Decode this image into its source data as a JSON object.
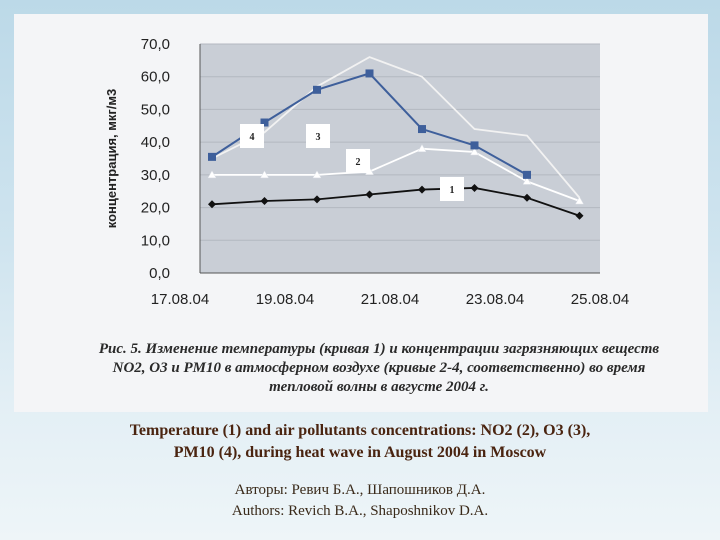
{
  "chart_data": {
    "type": "line",
    "ylabel": "концентрация, мкг/м3",
    "xlabel": "",
    "title": "",
    "ylim": [
      0,
      70
    ],
    "yticks": [
      "0,0",
      "10,0",
      "20,0",
      "30,0",
      "40,0",
      "50,0",
      "60,0",
      "70,0"
    ],
    "x_tick_labels": [
      "17.08.04",
      "19.08.04",
      "21.08.04",
      "23.08.04",
      "25.08.04"
    ],
    "x": [
      "17.08.04",
      "18.08.04",
      "19.08.04",
      "20.08.04",
      "21.08.04",
      "22.08.04",
      "23.08.04",
      "24.08.04"
    ],
    "grid": "horizontal",
    "series": [
      {
        "name": "1",
        "color": "#111111",
        "marker": "diamond",
        "values": [
          21,
          22,
          22.5,
          24,
          25.5,
          26,
          23,
          17.5
        ]
      },
      {
        "name": "2",
        "color": "#ffffff",
        "marker": "triangle",
        "values": [
          30,
          30,
          30,
          31,
          38,
          37,
          28,
          22
        ]
      },
      {
        "name": "3",
        "color": "#f2f2f2",
        "marker": "none",
        "values": [
          35,
          43,
          57,
          66,
          60,
          44,
          42,
          23
        ]
      },
      {
        "name": "4",
        "color": "#3e5f9b",
        "marker": "square",
        "values": [
          35.5,
          46,
          56,
          61,
          44,
          39,
          30,
          null
        ]
      }
    ],
    "curve_labels": [
      "1",
      "2",
      "3",
      "4"
    ]
  },
  "caption_ru": {
    "line1": "Рис. 5. Изменение температуры (кривая 1) и концентрации загрязняющих веществ",
    "line2": "NO2, O3 и PM10 в атмосферном воздухе (кривые 2-4, соответственно) во время",
    "line3": "тепловой волны в августе 2004 г."
  },
  "caption_en": {
    "line1": "Temperature (1) and air pollutants concentrations: NO2 (2), O3 (3),",
    "line2": "PM10 (4), during heat wave in August 2004 in Moscow"
  },
  "authors": {
    "ru": "Авторы: Ревич Б.А., Шапошников Д.А.",
    "en": "Authors: Revich B.A., Shaposhnikov D.A."
  }
}
